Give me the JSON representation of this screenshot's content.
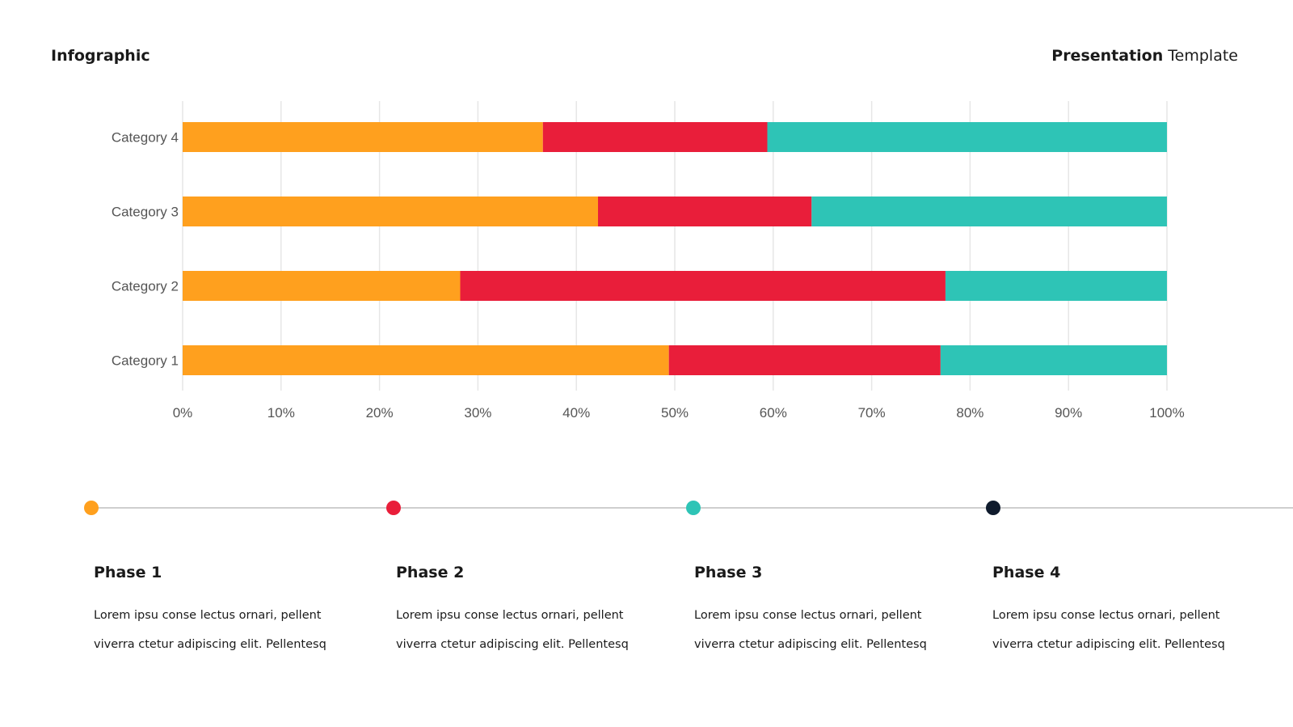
{
  "header": {
    "left_title": "Infographic",
    "right_title_bold": "Presentation",
    "right_title_rest": " Template"
  },
  "colors": {
    "orange": "#FFA01E",
    "red": "#E91E3A",
    "teal": "#2EC4B6",
    "navy": "#0F1B2D",
    "grid": "#E6E6E6"
  },
  "chart_data": {
    "type": "bar",
    "orientation": "horizontal",
    "stacked": true,
    "categories": [
      "Category 4",
      "Category 3",
      "Category 2",
      "Category 1"
    ],
    "series": [
      {
        "color": "#FFA01E",
        "values": [
          36.6,
          42.2,
          28.2,
          49.4
        ]
      },
      {
        "color": "#E91E3A",
        "values": [
          22.8,
          21.7,
          49.3,
          27.6
        ]
      },
      {
        "color": "#2EC4B6",
        "values": [
          40.6,
          36.1,
          22.5,
          23.0
        ]
      }
    ],
    "xlim": [
      0,
      100
    ],
    "xticks": [
      "0%",
      "10%",
      "20%",
      "30%",
      "40%",
      "50%",
      "60%",
      "70%",
      "80%",
      "90%",
      "100%"
    ],
    "grid": true,
    "legend": "none"
  },
  "timeline": {
    "phases": [
      {
        "title": "Phase 1",
        "line1": "Lorem ipsu conse lectus ornari, pellent",
        "line2": "viverra ctetur adipiscing elit. Pellentesq",
        "color": "#FFA01E"
      },
      {
        "title": "Phase 2",
        "line1": "Lorem ipsu conse lectus ornari, pellent",
        "line2": "viverra ctetur adipiscing elit. Pellentesq",
        "color": "#E91E3A"
      },
      {
        "title": "Phase 3",
        "line1": "Lorem ipsu conse lectus ornari, pellent",
        "line2": "viverra ctetur adipiscing elit. Pellentesq",
        "color": "#2EC4B6"
      },
      {
        "title": "Phase 4",
        "line1": "Lorem ipsu conse lectus ornari, pellent",
        "line2": "viverra ctetur adipiscing elit. Pellentesq",
        "color": "#0F1B2D"
      }
    ]
  }
}
